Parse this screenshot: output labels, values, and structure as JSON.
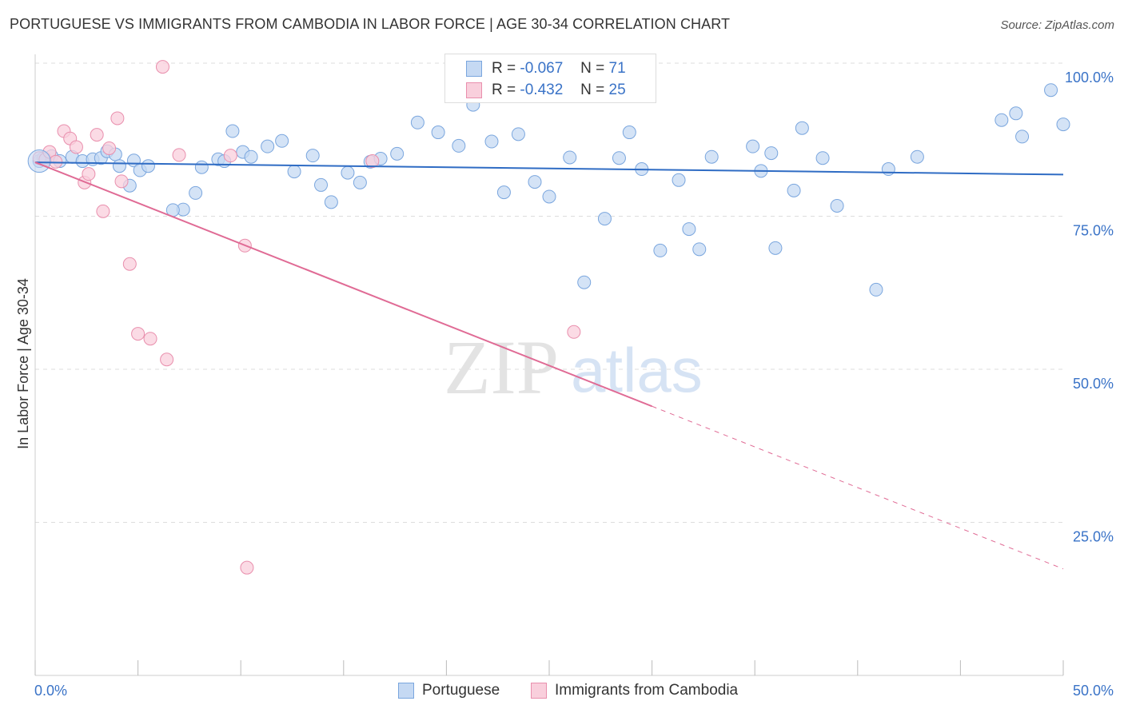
{
  "title": "PORTUGUESE VS IMMIGRANTS FROM CAMBODIA IN LABOR FORCE | AGE 30-34 CORRELATION CHART",
  "source": "Source: ZipAtlas.com",
  "watermark": {
    "zip": "ZIP",
    "atlas": "atlas"
  },
  "legend": {
    "rows": [
      {
        "r_label": "R =",
        "r_value": "-0.067",
        "n_label": "N =",
        "n_value": "71"
      },
      {
        "r_label": "R =",
        "r_value": "-0.432",
        "n_label": "N =",
        "n_value": "25"
      }
    ]
  },
  "bottom_legend": [
    "Portuguese",
    "Immigrants from Cambodia"
  ],
  "colors": {
    "portuguese_fill": "#c5d9f3",
    "portuguese_stroke": "#7aa6de",
    "portuguese_line": "#2f6cc4",
    "cambodia_fill": "#f9cfdc",
    "cambodia_stroke": "#e98fad",
    "cambodia_line": "#e06b95",
    "axis_label": "#3a73c7",
    "grid": "#dddddd"
  },
  "chart_data": {
    "type": "scatter",
    "title": "PORTUGUESE VS IMMIGRANTS FROM CAMBODIA IN LABOR FORCE | AGE 30-34 CORRELATION CHART",
    "xlabel": "",
    "ylabel": "In Labor Force | Age 30-34",
    "xlim": [
      0,
      50
    ],
    "ylim": [
      0,
      100
    ],
    "x_tick_labels": [
      "0.0%",
      "50.0%"
    ],
    "y_ticks": [
      25,
      50,
      75,
      100
    ],
    "y_tick_labels": [
      "25.0%",
      "50.0%",
      "75.0%",
      "100.0%"
    ],
    "series": [
      {
        "name": "Portuguese",
        "r": -0.067,
        "n": 71,
        "trend": {
          "x": [
            0,
            50
          ],
          "y": [
            83.8,
            81.8
          ],
          "dashed_from_x": null
        },
        "points": [
          [
            0.2,
            84.0
          ],
          [
            0.4,
            84.5
          ],
          [
            0.8,
            84.8
          ],
          [
            1.2,
            84.0
          ],
          [
            1.8,
            84.7
          ],
          [
            2.3,
            84.0
          ],
          [
            2.8,
            84.3
          ],
          [
            3.2,
            84.5
          ],
          [
            3.5,
            85.6
          ],
          [
            3.9,
            85.1
          ],
          [
            4.1,
            83.2
          ],
          [
            4.6,
            80.0
          ],
          [
            4.8,
            84.1
          ],
          [
            5.1,
            82.5
          ],
          [
            5.5,
            83.2
          ],
          [
            7.2,
            76.1
          ],
          [
            7.8,
            78.8
          ],
          [
            8.9,
            84.3
          ],
          [
            9.6,
            88.9
          ],
          [
            8.1,
            83.0
          ],
          [
            9.2,
            84.0
          ],
          [
            10.1,
            85.5
          ],
          [
            10.5,
            84.7
          ],
          [
            11.3,
            86.4
          ],
          [
            12.0,
            87.3
          ],
          [
            12.6,
            82.3
          ],
          [
            13.5,
            84.9
          ],
          [
            13.9,
            80.1
          ],
          [
            14.4,
            77.3
          ],
          [
            15.2,
            82.1
          ],
          [
            15.8,
            80.5
          ],
          [
            16.3,
            83.9
          ],
          [
            16.8,
            84.4
          ],
          [
            17.6,
            85.2
          ],
          [
            18.6,
            90.3
          ],
          [
            19.6,
            88.7
          ],
          [
            20.6,
            86.5
          ],
          [
            21.3,
            93.2
          ],
          [
            22.2,
            87.2
          ],
          [
            22.8,
            78.9
          ],
          [
            23.5,
            88.4
          ],
          [
            24.3,
            80.6
          ],
          [
            25.0,
            78.2
          ],
          [
            26.0,
            84.6
          ],
          [
            26.7,
            64.2
          ],
          [
            27.7,
            74.6
          ],
          [
            28.4,
            84.5
          ],
          [
            28.9,
            88.7
          ],
          [
            29.5,
            82.7
          ],
          [
            30.4,
            69.4
          ],
          [
            31.3,
            80.9
          ],
          [
            31.8,
            72.9
          ],
          [
            32.3,
            69.6
          ],
          [
            32.9,
            84.7
          ],
          [
            34.9,
            86.4
          ],
          [
            35.3,
            82.4
          ],
          [
            35.8,
            85.3
          ],
          [
            36.0,
            69.8
          ],
          [
            37.3,
            89.4
          ],
          [
            36.9,
            79.2
          ],
          [
            38.3,
            84.5
          ],
          [
            39.0,
            76.7
          ],
          [
            40.9,
            63.0
          ],
          [
            41.5,
            82.7
          ],
          [
            42.9,
            84.7
          ],
          [
            50.0,
            90.0
          ],
          [
            47.7,
            91.8
          ],
          [
            47.0,
            90.7
          ],
          [
            48.0,
            88.0
          ],
          [
            49.4,
            95.6
          ],
          [
            6.7,
            76.0
          ]
        ]
      },
      {
        "name": "Immigrants from Cambodia",
        "r": -0.432,
        "n": 25,
        "trend": {
          "x": [
            0,
            50
          ],
          "y": [
            83.8,
            17.4
          ],
          "dashed_from_x": 30.0
        },
        "points": [
          [
            0.2,
            84.5
          ],
          [
            0.5,
            84.3
          ],
          [
            0.7,
            85.5
          ],
          [
            1.0,
            83.9
          ],
          [
            1.4,
            88.9
          ],
          [
            1.7,
            87.7
          ],
          [
            2.0,
            86.3
          ],
          [
            2.4,
            80.5
          ],
          [
            2.6,
            81.9
          ],
          [
            3.0,
            88.3
          ],
          [
            3.3,
            75.8
          ],
          [
            3.6,
            86.1
          ],
          [
            4.0,
            91.0
          ],
          [
            4.2,
            80.7
          ],
          [
            4.6,
            67.2
          ],
          [
            5.0,
            55.8
          ],
          [
            5.6,
            55.0
          ],
          [
            6.4,
            51.6
          ],
          [
            6.2,
            99.4
          ],
          [
            7.0,
            85.0
          ],
          [
            10.2,
            70.2
          ],
          [
            10.3,
            17.6
          ],
          [
            16.4,
            84.0
          ],
          [
            26.2,
            56.1
          ],
          [
            9.5,
            84.9
          ]
        ]
      }
    ]
  }
}
